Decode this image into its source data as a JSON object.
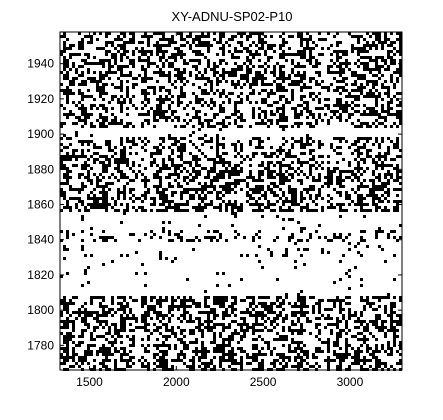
{
  "chart_data": {
    "type": "heatmap",
    "title": "XY-ADNU-SP02-P10",
    "xlabel": "",
    "ylabel": "",
    "xlim": [
      1330,
      3300
    ],
    "ylim": [
      1766,
      1958
    ],
    "x_ticks": [
      1500,
      2000,
      2500,
      3000
    ],
    "y_ticks": [
      1780,
      1800,
      1820,
      1840,
      1860,
      1880,
      1900,
      1920,
      1940
    ],
    "x_tick_labels": [
      "1500",
      "2000",
      "2500",
      "3000"
    ],
    "y_tick_labels": [
      "1780",
      "1800",
      "1820",
      "1840",
      "1860",
      "1880",
      "1900",
      "1920",
      "1940"
    ],
    "grid": false,
    "colormap": [
      "#000000",
      "#ffffff"
    ],
    "description_pattern": "binary (black/white) cross-recurrence style matrix with dense textured blocks separated by white bands",
    "bands_y": [
      {
        "range": [
          1766,
          1779
        ],
        "density": 0.45
      },
      {
        "range": [
          1779,
          1787
        ],
        "density": 0.35
      },
      {
        "range": [
          1787,
          1808
        ],
        "density": 0.42
      },
      {
        "range": [
          1808,
          1828
        ],
        "density": 0.02
      },
      {
        "range": [
          1828,
          1838
        ],
        "density": 0.05
      },
      {
        "range": [
          1838,
          1846
        ],
        "density": 0.22
      },
      {
        "range": [
          1846,
          1855
        ],
        "density": 0.05
      },
      {
        "range": [
          1855,
          1889
        ],
        "density": 0.4
      },
      {
        "range": [
          1889,
          1898
        ],
        "density": 0.3
      },
      {
        "range": [
          1898,
          1903
        ],
        "density": 0.03
      },
      {
        "range": [
          1903,
          1928
        ],
        "density": 0.38
      },
      {
        "range": [
          1928,
          1958
        ],
        "density": 0.4
      }
    ],
    "column_gaps_x": [
      [
        1770,
        1800
      ],
      [
        2390,
        2410
      ],
      [
        2840,
        2870
      ]
    ]
  }
}
